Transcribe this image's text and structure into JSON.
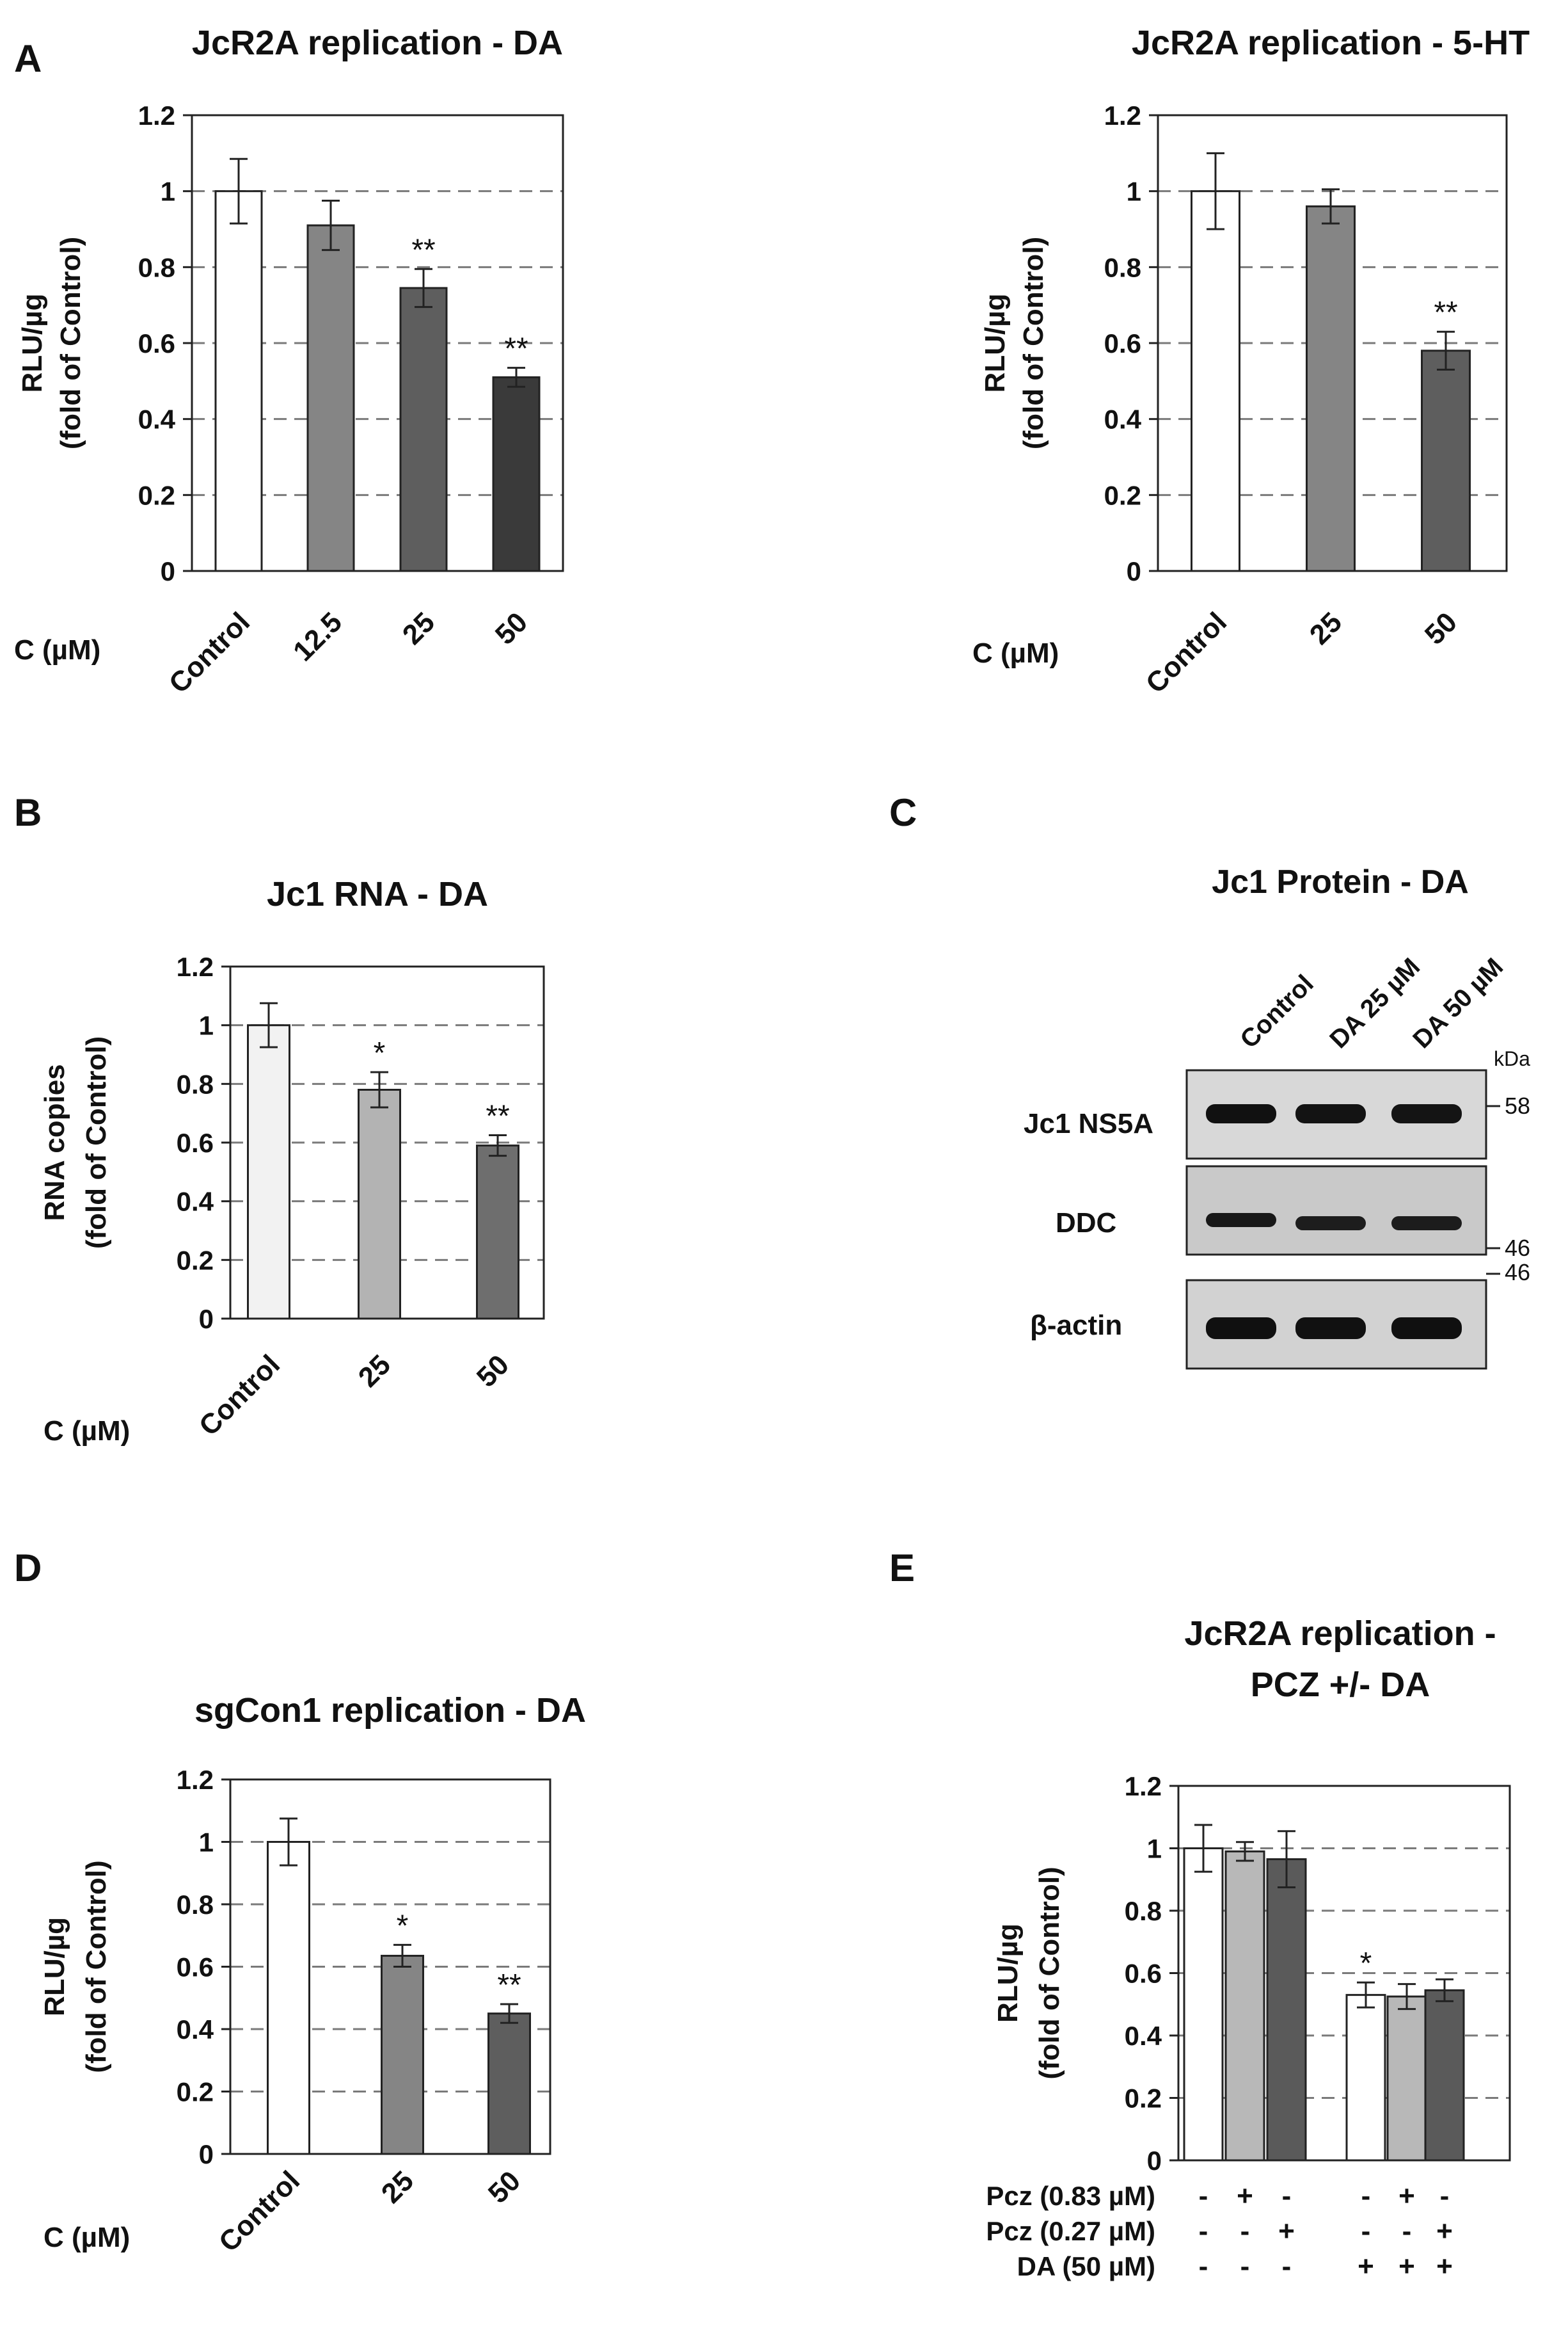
{
  "figure": {
    "panel_labels": [
      "A",
      "B",
      "C",
      "D",
      "E"
    ]
  },
  "chart_data": [
    {
      "id": "A1",
      "type": "bar",
      "panel": "A",
      "title": "JcR2A replication - DA",
      "ylabel": [
        "RLU/µg",
        "(fold of Control)"
      ],
      "xlabel": "C (µM)",
      "categories": [
        "Control",
        "12.5",
        "25",
        "50"
      ],
      "values": [
        1.0,
        0.91,
        0.745,
        0.51
      ],
      "errors": [
        0.085,
        0.065,
        0.05,
        0.025
      ],
      "significance": [
        "",
        "",
        "**",
        "**"
      ],
      "colors": [
        "#ffffff",
        "#858585",
        "#5e5e5e",
        "#3a3a3a"
      ],
      "ylim": [
        0,
        1.2
      ],
      "yticks": [
        "0",
        "0.2",
        "0.4",
        "0.6",
        "0.8",
        "1",
        "1.2"
      ],
      "grid": true
    },
    {
      "id": "A2",
      "type": "bar",
      "panel": "A",
      "title": "JcR2A replication - 5-HT",
      "ylabel": [
        "RLU/µg",
        "(fold of Control)"
      ],
      "xlabel": "C (µM)",
      "categories": [
        "Control",
        "25",
        "50"
      ],
      "values": [
        1.0,
        0.96,
        0.58
      ],
      "errors": [
        0.1,
        0.045,
        0.05
      ],
      "significance": [
        "",
        "",
        "**"
      ],
      "colors": [
        "#ffffff",
        "#858585",
        "#5e5e5e"
      ],
      "ylim": [
        0,
        1.2
      ],
      "yticks": [
        "0",
        "0.2",
        "0.4",
        "0.6",
        "0.8",
        "1",
        "1.2"
      ],
      "grid": true
    },
    {
      "id": "B",
      "type": "bar",
      "panel": "B",
      "title": "Jc1 RNA - DA",
      "ylabel": [
        "RNA copies",
        "(fold of Control)"
      ],
      "xlabel": "C (µM)",
      "categories": [
        "Control",
        "25",
        "50"
      ],
      "values": [
        1.0,
        0.78,
        0.59
      ],
      "errors": [
        0.075,
        0.06,
        0.035
      ],
      "significance": [
        "",
        "*",
        "**"
      ],
      "colors": [
        "#f2f2f2",
        "#b3b3b3",
        "#6e6e6e"
      ],
      "ylim": [
        0,
        1.2
      ],
      "yticks": [
        "0",
        "0.2",
        "0.4",
        "0.6",
        "0.8",
        "1",
        "1.2"
      ],
      "grid": true
    },
    {
      "id": "D",
      "type": "bar",
      "panel": "D",
      "title": "sgCon1 replication - DA",
      "ylabel": [
        "RLU/µg",
        "(fold of Control)"
      ],
      "xlabel": "C (µM)",
      "categories": [
        "Control",
        "25",
        "50"
      ],
      "values": [
        1.0,
        0.635,
        0.45
      ],
      "errors": [
        0.075,
        0.035,
        0.03
      ],
      "significance": [
        "",
        "*",
        "**"
      ],
      "colors": [
        "#ffffff",
        "#858585",
        "#5e5e5e"
      ],
      "ylim": [
        0,
        1.2
      ],
      "yticks": [
        "0",
        "0.2",
        "0.4",
        "0.6",
        "0.8",
        "1",
        "1.2"
      ],
      "grid": true
    },
    {
      "id": "E",
      "type": "bar",
      "panel": "E",
      "title": [
        "JcR2A replication -",
        "PCZ +/- DA"
      ],
      "ylabel": [
        "RLU/µg",
        "(fold of Control)"
      ],
      "values": [
        1.0,
        0.99,
        0.965,
        0.53,
        0.525,
        0.545
      ],
      "errors": [
        0.075,
        0.03,
        0.09,
        0.04,
        0.04,
        0.035
      ],
      "significance": [
        "",
        "",
        "",
        "*",
        "",
        ""
      ],
      "colors": [
        "#ffffff",
        "#b8b8b8",
        "#5a5a5a",
        "#ffffff",
        "#b8b8b8",
        "#5a5a5a"
      ],
      "ylim": [
        0,
        1.2
      ],
      "yticks": [
        "0",
        "0.2",
        "0.4",
        "0.6",
        "0.8",
        "1",
        "1.2"
      ],
      "grid": true,
      "conditions": [
        {
          "label": "Pcz (0.83 µM)",
          "marks": [
            "-",
            "+",
            "-",
            "-",
            "+",
            "-"
          ]
        },
        {
          "label": "Pcz (0.27 µM)",
          "marks": [
            "-",
            "-",
            "+",
            "-",
            "-",
            "+"
          ]
        },
        {
          "label": "DA  (50  µM)",
          "marks": [
            "-",
            "-",
            "-",
            "+",
            "+",
            "+"
          ]
        }
      ]
    }
  ],
  "western_blot": {
    "title": "Jc1 Protein - DA",
    "lanes": [
      "Control",
      "DA 25 µM",
      "DA 50 µM"
    ],
    "kda_label": "kDa",
    "rows": [
      {
        "label": "Jc1 NS5A",
        "intensity": [
          0.95,
          0.92,
          0.9
        ]
      },
      {
        "label": "DDC",
        "intensity": [
          0.8,
          0.7,
          0.72
        ]
      },
      {
        "label": "β-actin",
        "intensity": [
          0.98,
          0.96,
          0.97
        ]
      }
    ],
    "markers": [
      "58",
      "46",
      "46"
    ]
  }
}
